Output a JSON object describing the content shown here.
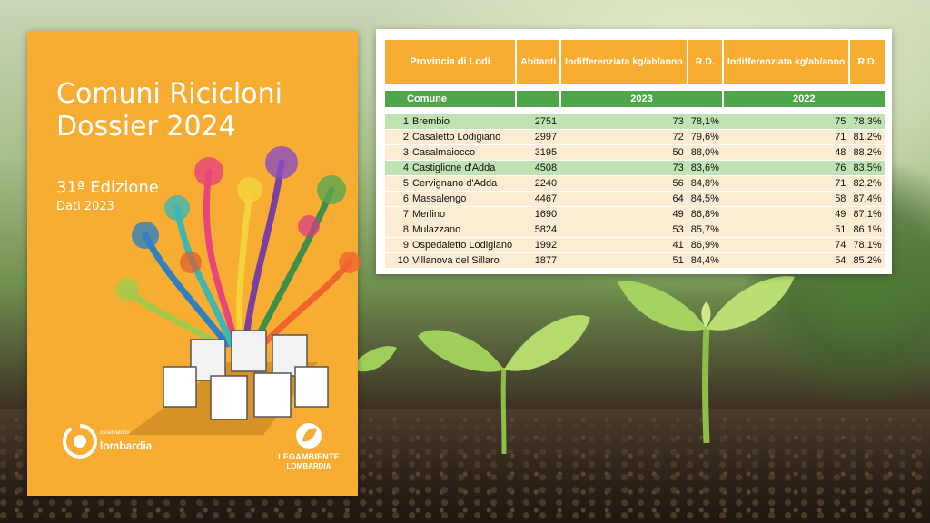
{
  "cover": {
    "title_line1": "Comuni Ricicloni",
    "title_line2": "Dossier 2024",
    "edition": "31ª Edizione",
    "data_year": "Dati 2023",
    "logo_left_small": "osservatorio",
    "logo_left": "lombardia",
    "logo_right_line1": "LEGAMBIENTE",
    "logo_right_line2": "LOMBARDIA"
  },
  "table": {
    "header": {
      "province": "Provincia di Lodi",
      "abitanti": "Abitanti",
      "indiff_2023": "Indifferenziata kg/ab/anno",
      "rd_2023": "R.D.",
      "indiff_2022": "Indifferenziata kg/ab/anno",
      "rd_2022": "R.D."
    },
    "subheader": {
      "comune": "Comune",
      "year_a": "2023",
      "year_b": "2022"
    },
    "rows": [
      {
        "rank": "1",
        "comune": "Brembio",
        "abitanti": "2751",
        "ind23": "73",
        "rd23": "78,1%",
        "ind22": "75",
        "rd22": "78,3%"
      },
      {
        "rank": "2",
        "comune": "Casaletto Lodigiano",
        "abitanti": "2997",
        "ind23": "72",
        "rd23": "79,6%",
        "ind22": "71",
        "rd22": "81,2%"
      },
      {
        "rank": "3",
        "comune": "Casalmaiocco",
        "abitanti": "3195",
        "ind23": "50",
        "rd23": "88,0%",
        "ind22": "48",
        "rd22": "88,2%"
      },
      {
        "rank": "4",
        "comune": "Castiglione d'Adda",
        "abitanti": "4508",
        "ind23": "73",
        "rd23": "83,6%",
        "ind22": "76",
        "rd22": "83,5%"
      },
      {
        "rank": "5",
        "comune": "Cervignano d'Adda",
        "abitanti": "2240",
        "ind23": "56",
        "rd23": "84,8%",
        "ind22": "71",
        "rd22": "82,2%"
      },
      {
        "rank": "6",
        "comune": "Massalengo",
        "abitanti": "4467",
        "ind23": "64",
        "rd23": "84,5%",
        "ind22": "58",
        "rd22": "87,4%"
      },
      {
        "rank": "7",
        "comune": "Merlino",
        "abitanti": "1690",
        "ind23": "49",
        "rd23": "86,8%",
        "ind22": "49",
        "rd22": "87,1%"
      },
      {
        "rank": "8",
        "comune": "Mulazzano",
        "abitanti": "5824",
        "ind23": "53",
        "rd23": "85,7%",
        "ind22": "51",
        "rd22": "86,1%"
      },
      {
        "rank": "9",
        "comune": "Ospedaletto Lodigiano",
        "abitanti": "1992",
        "ind23": "41",
        "rd23": "86,9%",
        "ind22": "74",
        "rd22": "78,1%"
      },
      {
        "rank": "10",
        "comune": "Villanova del Sillaro",
        "abitanti": "1877",
        "ind23": "51",
        "rd23": "84,4%",
        "ind22": "54",
        "rd22": "85,2%"
      }
    ]
  },
  "colors": {
    "orange": "#f6ad32",
    "green": "#4fa64a",
    "highlight": "#bfe3b2",
    "row": "#fbecd3"
  }
}
